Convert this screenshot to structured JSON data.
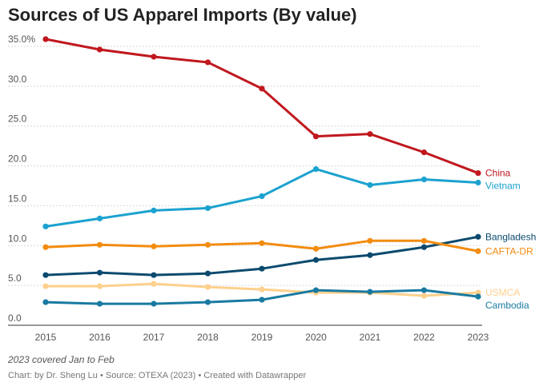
{
  "title": "Sources of US Apparel Imports (By value)",
  "note": "2023 covered Jan to Feb",
  "footer": {
    "prefix": "Chart: by Dr. Sheng Lu",
    "source": "Source: OTEXA (2023)",
    "credit": "Created with Datawrapper",
    "separator": "•"
  },
  "chart_data": {
    "type": "line",
    "title": "Sources of US Apparel Imports (By value)",
    "x": [
      "2015",
      "2016",
      "2017",
      "2018",
      "2019",
      "2020",
      "2021",
      "2022",
      "2023"
    ],
    "ylim": [
      0,
      35
    ],
    "y_ticks": [
      0,
      5,
      10,
      15,
      20,
      25,
      30,
      35
    ],
    "y_tick_labels": [
      "0.0",
      "5.0",
      "10.0",
      "15.0",
      "20.0",
      "25.0",
      "30.0",
      "35.0%"
    ],
    "grid": true,
    "legend": "direct labels at line ends",
    "series": [
      {
        "name": "China",
        "color": "#c0181e",
        "values": [
          35.9,
          34.6,
          33.7,
          33.0,
          29.7,
          23.7,
          24.0,
          21.7,
          19.1
        ]
      },
      {
        "name": "Vietnam",
        "color": "#1ba2cf",
        "values": [
          12.4,
          13.4,
          14.4,
          14.7,
          16.2,
          19.6,
          17.6,
          18.3,
          17.9
        ]
      },
      {
        "name": "Bangladesh",
        "color": "#0b4a6e",
        "values": [
          6.3,
          6.6,
          6.3,
          6.5,
          7.1,
          8.2,
          8.8,
          9.8,
          11.1
        ]
      },
      {
        "name": "CAFTA-DR",
        "color": "#f28c0f",
        "values": [
          9.8,
          10.1,
          9.9,
          10.1,
          10.3,
          9.6,
          10.6,
          10.6,
          9.3
        ]
      },
      {
        "name": "USMCA",
        "color": "#fdd08c",
        "values": [
          4.9,
          4.9,
          5.2,
          4.8,
          4.5,
          4.1,
          4.1,
          3.7,
          4.1
        ]
      },
      {
        "name": "Cambodia",
        "color": "#197aa1",
        "values": [
          2.9,
          2.7,
          2.7,
          2.9,
          3.2,
          4.4,
          4.2,
          4.4,
          3.6
        ]
      }
    ]
  }
}
